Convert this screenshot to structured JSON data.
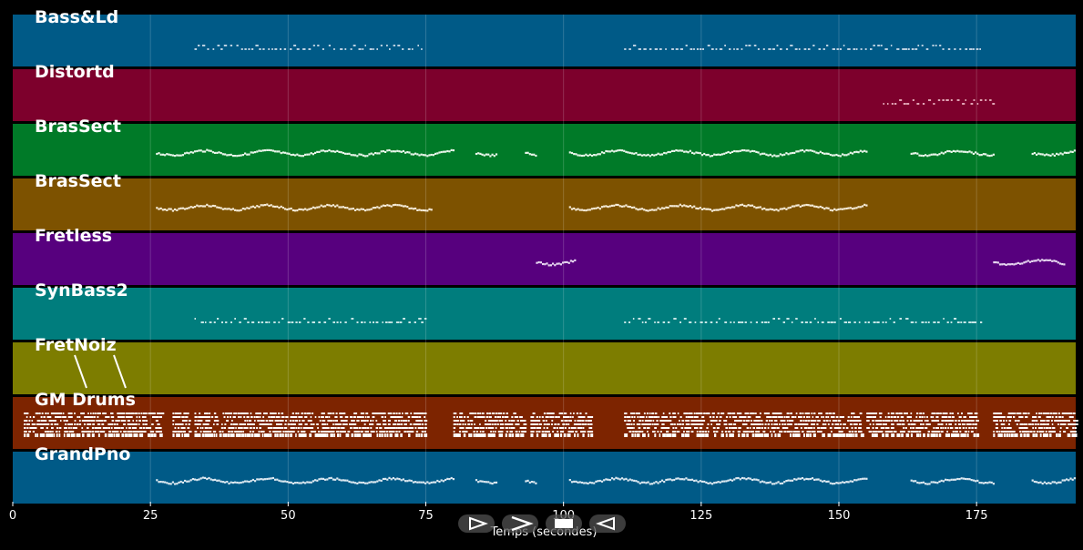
{
  "tracks": [
    {
      "name": "Bass&Ld",
      "color": "#005a87",
      "note_color": "#b9cfe0",
      "pattern": "sparse",
      "segments": [
        [
          33,
          75
        ],
        [
          111,
          176
        ]
      ]
    },
    {
      "name": "Distortd",
      "color": "#7d002c",
      "note_color": "#e0a2b4",
      "pattern": "sparse",
      "segments": [
        [
          158,
          178
        ]
      ]
    },
    {
      "name": "BrasSect",
      "color": "#007a28",
      "note_color": "#e8f5ea",
      "pattern": "melody",
      "segments": [
        [
          26,
          80
        ],
        [
          84,
          88
        ],
        [
          93,
          95
        ],
        [
          101,
          155
        ],
        [
          163,
          178
        ],
        [
          185,
          193
        ]
      ]
    },
    {
      "name": "BrasSect",
      "color": "#7d5200",
      "note_color": "#f5ebd8",
      "pattern": "melody",
      "segments": [
        [
          26,
          76
        ],
        [
          101,
          155
        ]
      ]
    },
    {
      "name": "Fretless",
      "color": "#57007e",
      "note_color": "#e7d7f0",
      "pattern": "melody",
      "segments": [
        [
          95,
          102
        ],
        [
          178,
          191
        ]
      ]
    },
    {
      "name": "SynBass2",
      "color": "#007d7d",
      "note_color": "#c7e6e6",
      "pattern": "sparse",
      "segments": [
        [
          33,
          75
        ],
        [
          111,
          176
        ]
      ]
    },
    {
      "name": "FretNoiz",
      "color": "#7d7d00",
      "note_color": "#ffffff",
      "pattern": "none",
      "segments": []
    },
    {
      "name": "GM Drums",
      "color": "#7d2400",
      "note_color": "#ffffff",
      "pattern": "drums",
      "segments": [
        [
          2,
          27
        ],
        [
          29,
          32
        ],
        [
          33,
          75
        ],
        [
          80,
          93
        ],
        [
          94,
          105
        ],
        [
          111,
          154
        ],
        [
          155,
          175
        ],
        [
          178,
          193
        ]
      ]
    },
    {
      "name": "GrandPno",
      "color": "#005a87",
      "note_color": "#dde8f0",
      "pattern": "melody",
      "segments": [
        [
          26,
          80
        ],
        [
          84,
          88
        ],
        [
          93,
          95
        ],
        [
          101,
          155
        ],
        [
          163,
          178
        ],
        [
          185,
          193
        ]
      ]
    }
  ],
  "x_axis": {
    "title": "Temps (secondes)",
    "min": 0,
    "max": 193,
    "ticks": [
      0,
      25,
      50,
      75,
      100,
      125,
      150,
      175
    ]
  },
  "controls": [
    {
      "name": "play",
      "icon": "play-outline-icon"
    },
    {
      "name": "forward",
      "icon": "chevron-right-icon"
    },
    {
      "name": "stop",
      "icon": "stop-icon"
    },
    {
      "name": "rewind",
      "icon": "rewind-icon"
    }
  ]
}
